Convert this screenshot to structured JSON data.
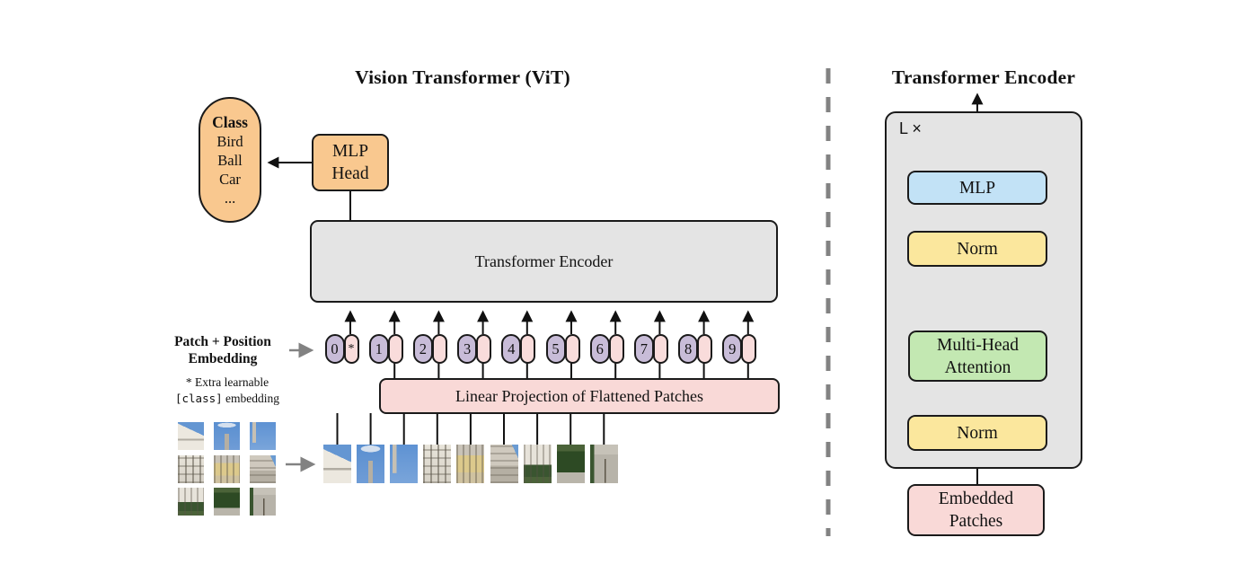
{
  "left_panel": {
    "title": "Vision Transformer (ViT)",
    "class_pill": {
      "header": "Class",
      "items": [
        "Bird",
        "Ball",
        "Car",
        "..."
      ]
    },
    "mlp_head_lines": [
      "MLP",
      "Head"
    ],
    "transformer_encoder_label": "Transformer Encoder",
    "patch_position_label_lines": [
      "Patch + Position",
      "Embedding"
    ],
    "note_line1": "* Extra learnable",
    "note_line2_code": "[class]",
    "note_line2_rest": " embedding",
    "linear_projection_label": "Linear Projection of Flattened Patches",
    "token_positions": [
      "0",
      "1",
      "2",
      "3",
      "4",
      "5",
      "6",
      "7",
      "8",
      "9"
    ],
    "class_token_mark": "*"
  },
  "right_panel": {
    "title": "Transformer Encoder",
    "loop_label": "L ×",
    "mlp_label": "MLP",
    "norm_top_label": "Norm",
    "mha_lines": [
      "Multi-Head",
      "Attention"
    ],
    "norm_bottom_label": "Norm",
    "embedded_patches_lines": [
      "Embedded",
      "Patches"
    ],
    "residual_add_symbol": "+"
  },
  "colors": {
    "box_orange": "#f9c88f",
    "box_blue": "#c2e2f6",
    "box_yellow": "#fbe79d",
    "box_green": "#c3e8b2",
    "box_pink": "#f9d9d7",
    "pill_purple": "#c8bcd8",
    "pill_pink": "#f9dcdb",
    "container_gray": "#e4e4e4",
    "line": "#111111",
    "divider_gray": "#828282"
  }
}
